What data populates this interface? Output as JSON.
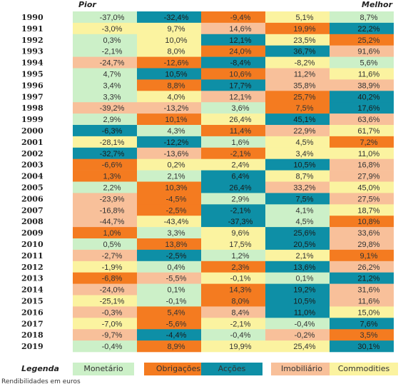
{
  "chart_data": {
    "type": "heatmap",
    "header_left": "Pior",
    "header_right": "Melhor",
    "years": [
      "1990",
      "1991",
      "1992",
      "1993",
      "1994",
      "1995",
      "1996",
      "1997",
      "1998",
      "1999",
      "2000",
      "2001",
      "2002",
      "2003",
      "2004",
      "2005",
      "2006",
      "2007",
      "2008",
      "2009",
      "2010",
      "2011",
      "2012",
      "2013",
      "2014",
      "2015",
      "2016",
      "2017",
      "2018",
      "2019"
    ],
    "categories": [
      "Monetário",
      "Obrigações",
      "Acções",
      "Imobiliário",
      "Commodities"
    ],
    "colors": {
      "Monetário": "#ccf0c8",
      "Obrigações": "#f47b20",
      "Acções": "#0e8fa6",
      "Imobiliário": "#f8c09a",
      "Commodities": "#fbf3a0"
    },
    "rows": [
      [
        [
          "Monetário",
          "-37,0%"
        ],
        [
          "Acções",
          "-32,4%"
        ],
        [
          "Obrigações",
          "-9,4%"
        ],
        [
          "Commodities",
          "5,1%"
        ],
        [
          "Monetário",
          "8,7%"
        ]
      ],
      [
        [
          "Commodities",
          "-3,0%"
        ],
        [
          "Commodities",
          "9,7%"
        ],
        [
          "Imobiliário",
          "14,6%"
        ],
        [
          "Obrigações",
          "19,9%"
        ],
        [
          "Acções",
          "22,2%"
        ]
      ],
      [
        [
          "Monetário",
          "0,3%"
        ],
        [
          "Commodities",
          "10,0%"
        ],
        [
          "Acções",
          "12,1%"
        ],
        [
          "Commodities",
          "23,5%"
        ],
        [
          "Obrigações",
          "25,2%"
        ]
      ],
      [
        [
          "Monetário",
          "-2,1%"
        ],
        [
          "Commodities",
          "8,0%"
        ],
        [
          "Obrigações",
          "24,0%"
        ],
        [
          "Acções",
          "36,7%"
        ],
        [
          "Imobiliário",
          "91,6%"
        ]
      ],
      [
        [
          "Imobiliário",
          "-24,7%"
        ],
        [
          "Obrigações",
          "-12,6%"
        ],
        [
          "Acções",
          "-8,4%"
        ],
        [
          "Commodities",
          "-8,2%"
        ],
        [
          "Monetário",
          "5,6%"
        ]
      ],
      [
        [
          "Monetário",
          "4,7%"
        ],
        [
          "Acções",
          "10,5%"
        ],
        [
          "Obrigações",
          "10,6%"
        ],
        [
          "Imobiliário",
          "11,2%"
        ],
        [
          "Commodities",
          "11,6%"
        ]
      ],
      [
        [
          "Monetário",
          "3,4%"
        ],
        [
          "Obrigações",
          "8,8%"
        ],
        [
          "Acções",
          "17,7%"
        ],
        [
          "Imobiliário",
          "35,8%"
        ],
        [
          "Imobiliário",
          "38,9%"
        ]
      ],
      [
        [
          "Monetário",
          "3,3%"
        ],
        [
          "Commodities",
          "4,0%"
        ],
        [
          "Imobiliário",
          "12,1%"
        ],
        [
          "Obrigações",
          "25,7%"
        ],
        [
          "Acções",
          "40,2%"
        ]
      ],
      [
        [
          "Imobiliário",
          "-39,2%"
        ],
        [
          "Imobiliário",
          "-13,2%"
        ],
        [
          "Monetário",
          "3,6%"
        ],
        [
          "Obrigações",
          "7,5%"
        ],
        [
          "Acções",
          "17,6%"
        ]
      ],
      [
        [
          "Monetário",
          "2,9%"
        ],
        [
          "Obrigações",
          "10,1%"
        ],
        [
          "Commodities",
          "26,4%"
        ],
        [
          "Acções",
          "45,1%"
        ],
        [
          "Imobiliário",
          "63,6%"
        ]
      ],
      [
        [
          "Acções",
          "-6,3%"
        ],
        [
          "Monetário",
          "4,3%"
        ],
        [
          "Obrigações",
          "11,4%"
        ],
        [
          "Imobiliário",
          "22,9%"
        ],
        [
          "Commodities",
          "61,7%"
        ]
      ],
      [
        [
          "Commodities",
          "-28,1%"
        ],
        [
          "Acções",
          "-12,2%"
        ],
        [
          "Monetário",
          "1,6%"
        ],
        [
          "Commodities",
          "4,5%"
        ],
        [
          "Obrigações",
          "7,2%"
        ]
      ],
      [
        [
          "Acções",
          "-32,7%"
        ],
        [
          "Imobiliário",
          "-13,6%"
        ],
        [
          "Obrigações",
          "-2,1%"
        ],
        [
          "Commodities",
          "3,4%"
        ],
        [
          "Commodities",
          "11,0%"
        ]
      ],
      [
        [
          "Obrigações",
          "-6,6%"
        ],
        [
          "Commodities",
          "0,2%"
        ],
        [
          "Commodities",
          "2,4%"
        ],
        [
          "Acções",
          "10,5%"
        ],
        [
          "Imobiliário",
          "16,8%"
        ]
      ],
      [
        [
          "Obrigações",
          "1,3%"
        ],
        [
          "Monetário",
          "2,1%"
        ],
        [
          "Acções",
          "6,4%"
        ],
        [
          "Commodities",
          "8,7%"
        ],
        [
          "Imobiliário",
          "27,9%"
        ]
      ],
      [
        [
          "Monetário",
          "2,2%"
        ],
        [
          "Obrigações",
          "10,3%"
        ],
        [
          "Acções",
          "26,4%"
        ],
        [
          "Imobiliário",
          "33,2%"
        ],
        [
          "Commodities",
          "45,0%"
        ]
      ],
      [
        [
          "Imobiliário",
          "-23,9%"
        ],
        [
          "Obrigações",
          "-4,5%"
        ],
        [
          "Monetário",
          "2,9%"
        ],
        [
          "Acções",
          "7,5%"
        ],
        [
          "Imobiliário",
          "27,5%"
        ]
      ],
      [
        [
          "Imobiliário",
          "-16,8%"
        ],
        [
          "Obrigações",
          "-2,5%"
        ],
        [
          "Acções",
          "-2,1%"
        ],
        [
          "Monetário",
          "4,1%"
        ],
        [
          "Commodities",
          "18,7%"
        ]
      ],
      [
        [
          "Imobiliário",
          "-44,7%"
        ],
        [
          "Commodities",
          "-43,4%"
        ],
        [
          "Acções",
          "-37,3%"
        ],
        [
          "Monetário",
          "4,5%"
        ],
        [
          "Obrigações",
          "10,8%"
        ]
      ],
      [
        [
          "Obrigações",
          "1,0%"
        ],
        [
          "Monetário",
          "3,3%"
        ],
        [
          "Commodities",
          "9,6%"
        ],
        [
          "Acções",
          "25,6%"
        ],
        [
          "Imobiliário",
          "33,6%"
        ]
      ],
      [
        [
          "Monetário",
          "0,5%"
        ],
        [
          "Obrigações",
          "13,8%"
        ],
        [
          "Commodities",
          "17,5%"
        ],
        [
          "Acções",
          "20,5%"
        ],
        [
          "Imobiliário",
          "29,8%"
        ]
      ],
      [
        [
          "Imobiliário",
          "-2,7%"
        ],
        [
          "Acções",
          "-2,5%"
        ],
        [
          "Monetário",
          "1,2%"
        ],
        [
          "Commodities",
          "2,1%"
        ],
        [
          "Obrigações",
          "9,1%"
        ]
      ],
      [
        [
          "Commodities",
          "-1,9%"
        ],
        [
          "Monetário",
          "0,4%"
        ],
        [
          "Obrigações",
          "2,3%"
        ],
        [
          "Acções",
          "13,6%"
        ],
        [
          "Imobiliário",
          "26,2%"
        ]
      ],
      [
        [
          "Obrigações",
          "-6,8%"
        ],
        [
          "Imobiliário",
          "-5,5%"
        ],
        [
          "Commodities",
          "-0,1%"
        ],
        [
          "Monetário",
          "0,1%"
        ],
        [
          "Acções",
          "21,2%"
        ]
      ],
      [
        [
          "Imobiliário",
          "-24,0%"
        ],
        [
          "Monetário",
          "0,1%"
        ],
        [
          "Obrigações",
          "14,3%"
        ],
        [
          "Acções",
          "19,2%"
        ],
        [
          "Imobiliário",
          "31,6%"
        ]
      ],
      [
        [
          "Commodities",
          "-25,1%"
        ],
        [
          "Monetário",
          "-0,1%"
        ],
        [
          "Obrigações",
          "8,0%"
        ],
        [
          "Acções",
          "10,5%"
        ],
        [
          "Imobiliário",
          "11,6%"
        ]
      ],
      [
        [
          "Imobiliário",
          "-0,3%"
        ],
        [
          "Obrigações",
          "5,4%"
        ],
        [
          "Imobiliário",
          "8,4%"
        ],
        [
          "Acções",
          "11,0%"
        ],
        [
          "Commodities",
          "15,0%"
        ]
      ],
      [
        [
          "Commodities",
          "-7,0%"
        ],
        [
          "Obrigações",
          "-5,6%"
        ],
        [
          "Commodities",
          "-2,1%"
        ],
        [
          "Monetário",
          "-0,4%"
        ],
        [
          "Acções",
          "7,6%"
        ]
      ],
      [
        [
          "Imobiliário",
          "-9,7%"
        ],
        [
          "Acções",
          "-4,4%"
        ],
        [
          "Monetário",
          "-0,4%"
        ],
        [
          "Imobiliário",
          "-0,2%"
        ],
        [
          "Obrigações",
          "3,5%"
        ]
      ],
      [
        [
          "Monetário",
          "-0,4%"
        ],
        [
          "Obrigações",
          "8,9%"
        ],
        [
          "Commodities",
          "19,9%"
        ],
        [
          "Commodities",
          "25,4%"
        ],
        [
          "Acções",
          "30,1%"
        ]
      ]
    ]
  },
  "legend": {
    "title": "Legenda",
    "items": [
      "Monetário",
      "Obrigações",
      "Acções",
      "Imobiliário",
      "Commodities"
    ]
  },
  "footnote": "Rendibilidades em euros"
}
